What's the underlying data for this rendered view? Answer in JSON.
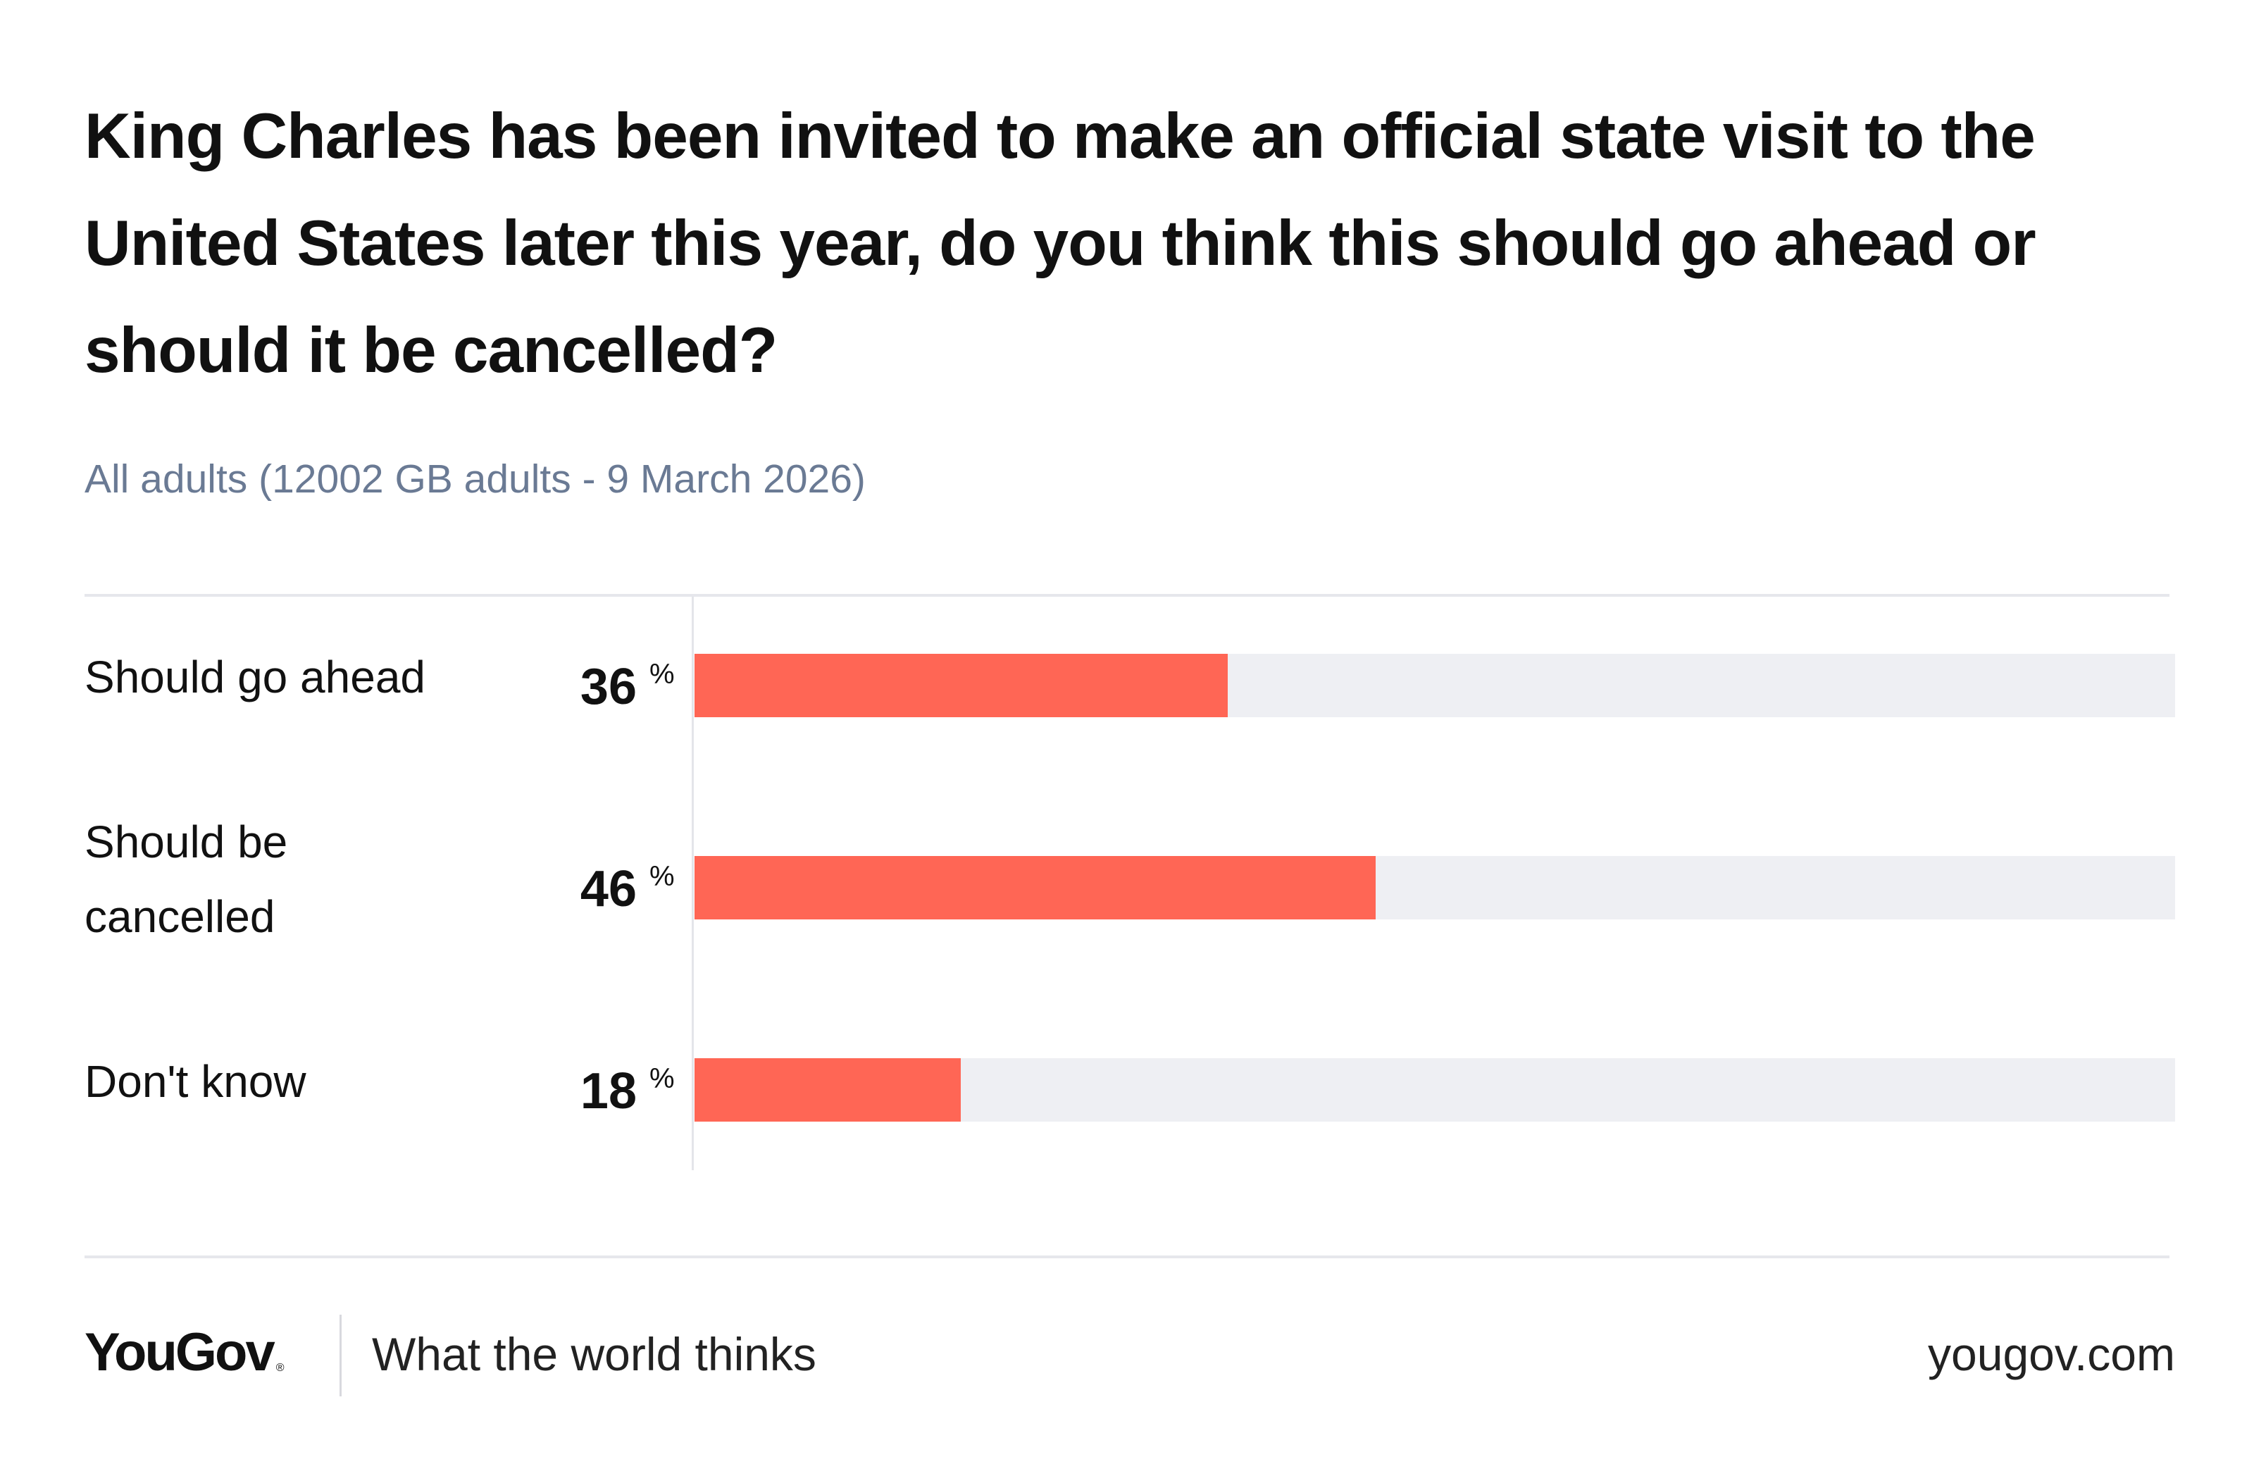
{
  "chart_data": {
    "type": "bar",
    "orientation": "horizontal",
    "title": "King Charles has been invited to make an official state visit to the United States later this year, do you think this should go ahead or should it be cancelled?",
    "subtitle": "All adults (12002 GB adults - 9 March 2026)",
    "categories": [
      "Should go ahead",
      "Should be cancelled",
      "Don't know"
    ],
    "values": [
      36,
      46,
      18
    ],
    "value_labels": [
      "36",
      "46",
      "18"
    ],
    "unit": "%",
    "xlim": [
      0,
      100
    ],
    "bar_color": "#ff6655",
    "track_color": "#eeeff3",
    "grid": false,
    "legend": "none"
  },
  "footer": {
    "logo": "YouGov",
    "logo_mark": "®",
    "tagline": "What the world thinks",
    "site": "yougov.com"
  }
}
